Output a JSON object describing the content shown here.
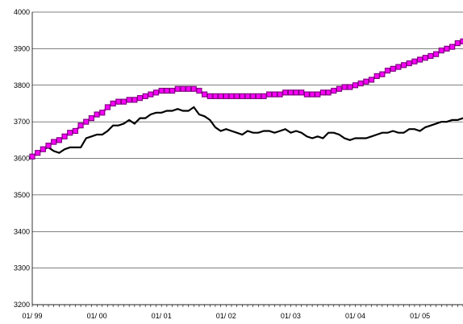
{
  "chart_data": {
    "type": "line",
    "title": "",
    "xlabel": "",
    "ylabel": "",
    "ylim": [
      3200,
      4000
    ],
    "yticks": [
      3200,
      3300,
      3400,
      3500,
      3600,
      3700,
      3800,
      3900,
      4000
    ],
    "x_tick_labels": [
      "01/ 99",
      "01/ 00",
      "01/ 01",
      "01/ 02",
      "01/ 03",
      "01/ 04",
      "01/ 05"
    ],
    "x_range_months": "01/99 - 08/05",
    "grid": "horizontal",
    "legend": "none",
    "series": [
      {
        "color": "#000000",
        "marker": "none",
        "values": [
          3605,
          3615,
          3625,
          3630,
          3620,
          3615,
          3625,
          3630,
          3630,
          3630,
          3655,
          3660,
          3665,
          3665,
          3675,
          3690,
          3690,
          3695,
          3705,
          3695,
          3710,
          3710,
          3720,
          3725,
          3725,
          3730,
          3730,
          3735,
          3730,
          3730,
          3740,
          3720,
          3715,
          3705,
          3685,
          3675,
          3680,
          3675,
          3670,
          3665,
          3675,
          3670,
          3670,
          3675,
          3675,
          3670,
          3675,
          3680,
          3670,
          3675,
          3670,
          3660,
          3655,
          3660,
          3655,
          3670,
          3670,
          3665,
          3655,
          3650,
          3655,
          3655,
          3655,
          3660,
          3665,
          3670,
          3670,
          3675,
          3670,
          3670,
          3680,
          3680,
          3675,
          3685,
          3690,
          3695,
          3700,
          3700,
          3705,
          3705,
          3710
        ]
      },
      {
        "color": "#ff00ff",
        "marker": "square",
        "marker_color": "#800080",
        "values": [
          3605,
          3615,
          3625,
          3635,
          3645,
          3650,
          3660,
          3670,
          3675,
          3690,
          3700,
          3710,
          3720,
          3725,
          3740,
          3750,
          3755,
          3755,
          3760,
          3760,
          3765,
          3770,
          3775,
          3780,
          3785,
          3785,
          3785,
          3790,
          3790,
          3790,
          3790,
          3785,
          3775,
          3770,
          3770,
          3770,
          3770,
          3770,
          3770,
          3770,
          3770,
          3770,
          3770,
          3770,
          3775,
          3775,
          3775,
          3780,
          3780,
          3780,
          3780,
          3775,
          3775,
          3775,
          3780,
          3780,
          3785,
          3790,
          3795,
          3795,
          3800,
          3805,
          3810,
          3815,
          3825,
          3830,
          3840,
          3845,
          3850,
          3855,
          3860,
          3865,
          3870,
          3875,
          3880,
          3885,
          3895,
          3900,
          3905,
          3915,
          3920
        ]
      }
    ]
  }
}
